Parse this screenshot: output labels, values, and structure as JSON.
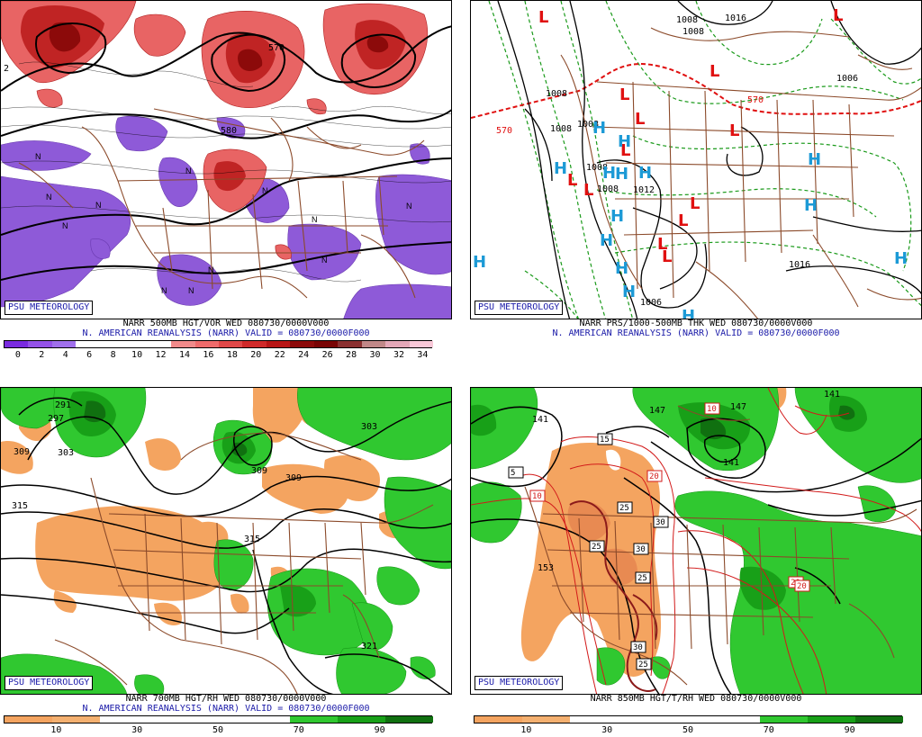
{
  "panels": [
    {
      "badge": "PSU METEOROLOGY",
      "caption1": "NARR 500MB HGT/VOR WED 080730/0000V000",
      "caption2": "N. AMERICAN REANALYSIS (NARR) VALID = 080730/0000F000",
      "contour_labels": [
        "570",
        "580",
        "2"
      ],
      "marks": [
        "N"
      ],
      "colorbar": {
        "labels": [
          "0",
          "2",
          "4",
          "6",
          "8",
          "10",
          "12",
          "14",
          "16",
          "18",
          "20",
          "22",
          "24",
          "26",
          "28",
          "30",
          "32",
          "34"
        ],
        "colors": [
          "#7a2be0",
          "#9452e8",
          "#a070ec",
          "#ffffff",
          "#ffffff",
          "#ffffff",
          "#ffffff",
          "#f08a8a",
          "#ee6b6b",
          "#e04848",
          "#d02a2a",
          "#b81616",
          "#8c0a0a",
          "#780404",
          "#8a3030",
          "#c08888",
          "#e4a8b8",
          "#f8c8d8"
        ]
      }
    },
    {
      "badge": "PSU METEOROLOGY",
      "caption1": "NARR PRS/1000-500MB THK WED 080730/0000V000",
      "caption2": "N. AMERICAN REANALYSIS (NARR) VALID = 080730/0000F000",
      "pressure_labels": [
        "1008",
        "1016",
        "1008",
        "1008",
        "1006",
        "1008",
        "1008",
        "1008",
        "1008",
        "1012",
        "1016",
        "1006"
      ],
      "thickness_labels": [
        "570",
        "570"
      ],
      "highs": "H",
      "lows": "L"
    },
    {
      "badge": "PSU METEOROLOGY",
      "caption1": "NARR 700MB HGT/RH WED 080730/0000V000",
      "caption2": "N. AMERICAN REANALYSIS (NARR) VALID = 080730/0000F000",
      "contour_labels": [
        "291",
        "297",
        "303",
        "309",
        "303",
        "309",
        "309",
        "315",
        "315",
        "321"
      ],
      "colorbar": {
        "labels": [
          "10",
          "30",
          "50",
          "70",
          "90"
        ],
        "colors": [
          "#f4a460",
          "#f4b070",
          "#ffffff",
          "#ffffff",
          "#ffffff",
          "#ffffff",
          "#30c830",
          "#18a018",
          "#107010"
        ]
      }
    },
    {
      "badge": "PSU METEOROLOGY",
      "caption1": "NARR 850MB HGT/T/RH WED 080730/0000V000",
      "caption2": "",
      "contour_labels": [
        "141",
        "147",
        "147",
        "141",
        "141",
        "153"
      ],
      "temp_labels": [
        "10",
        "5",
        "10",
        "15",
        "20",
        "25",
        "30",
        "25",
        "30",
        "25",
        "20",
        "20",
        "30",
        "25"
      ],
      "colorbar": {
        "labels": [
          "10",
          "30",
          "50",
          "70",
          "90"
        ],
        "colors": [
          "#f4a460",
          "#f4b070",
          "#ffffff",
          "#ffffff",
          "#ffffff",
          "#ffffff",
          "#30c830",
          "#18a018",
          "#107010"
        ]
      }
    }
  ]
}
